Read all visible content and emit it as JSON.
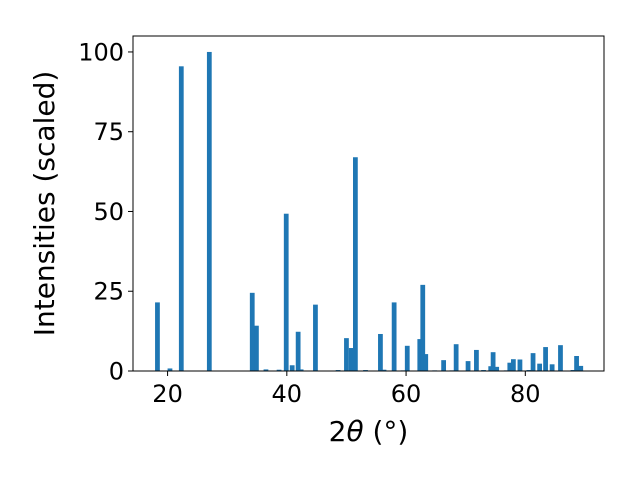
{
  "chart_data": {
    "type": "bar",
    "xlabel_prefix": "2",
    "xlabel_symbol": "θ",
    "xlabel_unit": " (°)",
    "ylabel": "Intensities (scaled)",
    "xlim": [
      14.2,
      93.2
    ],
    "ylim": [
      0,
      105
    ],
    "xticks": [
      20,
      40,
      60,
      80
    ],
    "yticks": [
      0,
      25,
      50,
      75,
      100
    ],
    "grid": false,
    "bar_color": "#1f77b4",
    "bar_width": 0.8,
    "x": [
      18.3,
      20.4,
      22.3,
      27.0,
      34.2,
      34.9,
      36.5,
      38.7,
      39.9,
      40.9,
      41.9,
      42.4,
      44.8,
      48.6,
      50.0,
      50.8,
      51.5,
      53.2,
      55.7,
      56.3,
      58.0,
      59.5,
      60.2,
      62.3,
      62.8,
      63.3,
      64.8,
      66.3,
      67.7,
      68.4,
      70.4,
      71.8,
      73.0,
      74.2,
      74.6,
      75.2,
      76.8,
      77.4,
      78.0,
      79.1,
      80.6,
      81.3,
      82.4,
      83.4,
      84.5,
      85.9,
      88.0,
      88.6,
      89.3
    ],
    "values": [
      21.5,
      0.8,
      95.5,
      100,
      24.5,
      14.2,
      0.5,
      0.4,
      49.3,
      1.8,
      12.3,
      0.5,
      20.8,
      0.3,
      10.3,
      7.2,
      67.0,
      0.3,
      11.6,
      0.4,
      21.5,
      0.2,
      7.9,
      10.0,
      27.0,
      5.3,
      0.2,
      3.4,
      0.2,
      8.4,
      3.1,
      6.6,
      0.3,
      1.5,
      5.9,
      1.3,
      0.2,
      2.6,
      3.7,
      3.6,
      0.3,
      5.6,
      2.3,
      7.5,
      2.1,
      8.1,
      0.3,
      4.7,
      1.6
    ]
  }
}
